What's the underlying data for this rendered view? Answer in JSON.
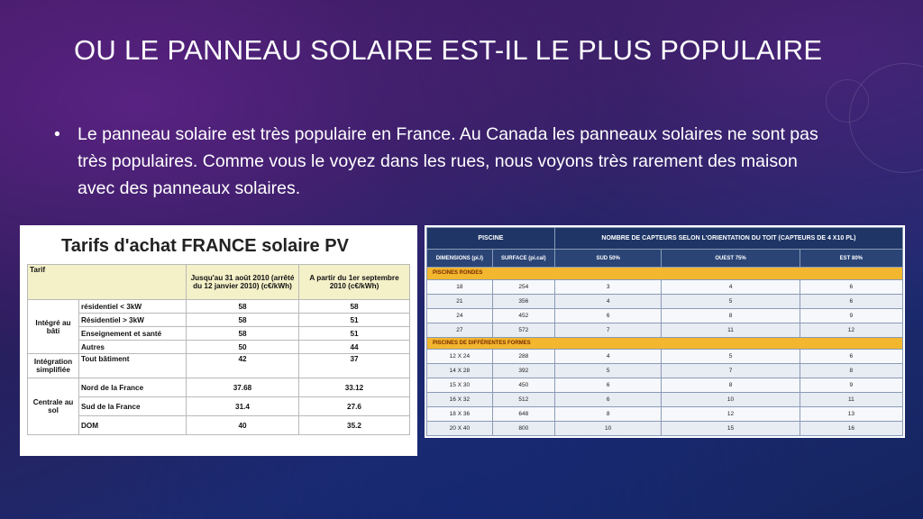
{
  "slide": {
    "title": "OU LE PANNEAU SOLAIRE EST-IL LE PLUS POPULAIRE",
    "bullet_symbol": "•",
    "bullet": "Le panneau solaire est très populaire en France. Au Canada les panneaux solaires ne sont pas très populaires. Comme vous le voyez dans les rues, nous voyons très rarement des maison avec des panneaux solaires."
  },
  "tarifs_table": {
    "title": "Tarifs d'achat FRANCE solaire PV",
    "col_tarif": "Tarif",
    "col1": "Jusqu'au 31 août 2010 (arrêté du 12 janvier 2010) (c€/kWh)",
    "col2": "A partir du 1er septembre 2010 (c€/kWh)",
    "groups": [
      {
        "name": "Intégré au bâti",
        "rows": [
          {
            "label": "résidentiel < 3kW",
            "v1": "58",
            "v2": "58"
          },
          {
            "label": "Résidentiel > 3kW",
            "v1": "58",
            "v2": "51"
          },
          {
            "label": "Enseignement et santé",
            "v1": "58",
            "v2": "51"
          },
          {
            "label": "Autres",
            "v1": "50",
            "v2": "44"
          }
        ]
      },
      {
        "name": "Intégration simplifiée",
        "rows": [
          {
            "label": "Tout bâtiment",
            "v1": "42",
            "v2": "37"
          }
        ]
      },
      {
        "name": "Centrale au sol",
        "rows": [
          {
            "label": "Nord de la France",
            "v1": "37.68",
            "v2": "33.12"
          },
          {
            "label": "Sud de la France",
            "v1": "31.4",
            "v2": "27.6"
          },
          {
            "label": "DOM",
            "v1": "40",
            "v2": "35.2"
          }
        ]
      }
    ]
  },
  "piscine_table": {
    "header_left": "PISCINE",
    "header_right": "NOMBRE DE CAPTEURS SELON L'ORIENTATION DU TOIT (CAPTEURS DE 4 X10 PL)",
    "sub_headers": [
      "DIMENSIONS (pi.l)",
      "SURFACE (pi.cal)",
      "SUD 50%",
      "OUEST 75%",
      "EST 80%"
    ],
    "section1": "PISCINES RONDES",
    "rows1": [
      [
        "18",
        "254",
        "3",
        "4",
        "6"
      ],
      [
        "21",
        "356",
        "4",
        "5",
        "6"
      ],
      [
        "24",
        "452",
        "6",
        "8",
        "9"
      ],
      [
        "27",
        "572",
        "7",
        "11",
        "12"
      ]
    ],
    "section2": "PISCINES DE DIFFÉRENTES FORMES",
    "rows2": [
      [
        "12 X 24",
        "288",
        "4",
        "5",
        "6"
      ],
      [
        "14 X 28",
        "392",
        "5",
        "7",
        "8"
      ],
      [
        "15 X 30",
        "450",
        "6",
        "8",
        "9"
      ],
      [
        "16 X 32",
        "512",
        "6",
        "10",
        "11"
      ],
      [
        "18 X 36",
        "648",
        "8",
        "12",
        "13"
      ],
      [
        "20 X 40",
        "800",
        "10",
        "15",
        "16"
      ]
    ]
  }
}
